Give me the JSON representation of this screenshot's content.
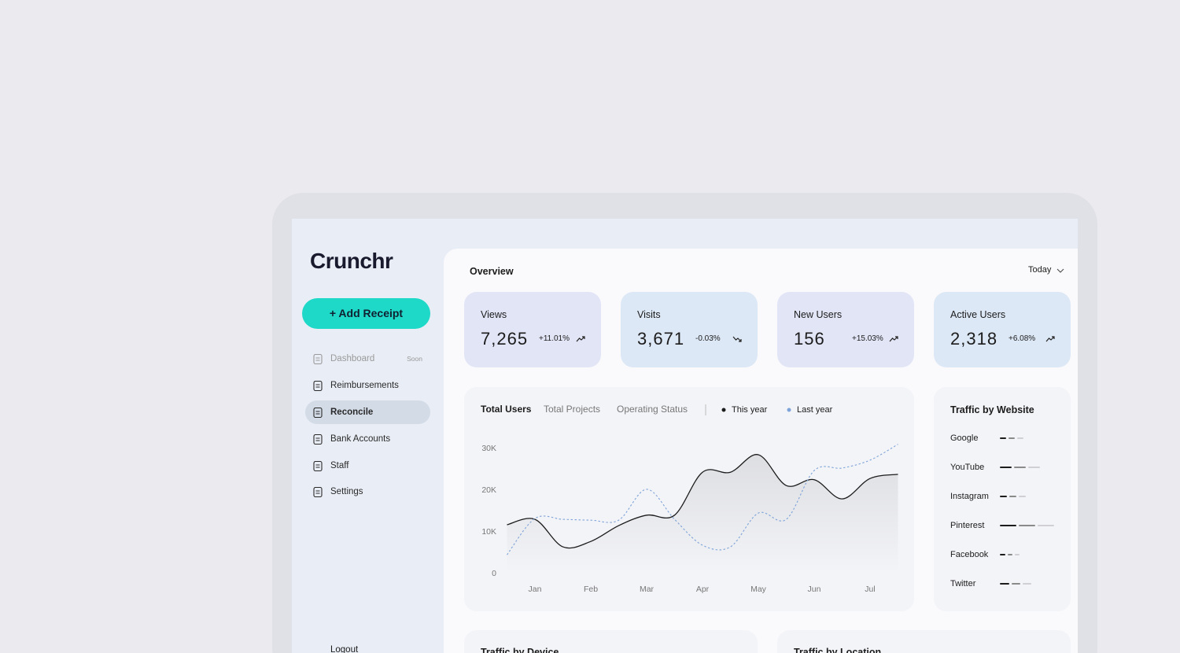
{
  "sidebar": {
    "logo": "Crunchr",
    "button": "+ Add Receipt",
    "nav": [
      {
        "label": "Dashboard",
        "badge": "Soon",
        "disabled": true
      },
      {
        "label": "Reimbursements"
      },
      {
        "label": "Reconcile",
        "active": true
      },
      {
        "label": "Bank Accounts"
      },
      {
        "label": "Staff"
      },
      {
        "label": "Settings"
      }
    ],
    "logout": "Logout"
  },
  "overview": {
    "title": "Overview",
    "period": "Today",
    "stats": [
      {
        "label": "Views",
        "value": "7,265",
        "change": "+11.01%",
        "trend": "up"
      },
      {
        "label": "Visits",
        "value": "3,671",
        "change": "-0.03%",
        "trend": "down"
      },
      {
        "label": "New Users",
        "value": "156",
        "change": "+15.03%",
        "trend": "up"
      },
      {
        "label": "Active Users",
        "value": "2,318",
        "change": "+6.08%",
        "trend": "up"
      }
    ]
  },
  "chart_data": {
    "type": "line",
    "tabs": [
      "Total Users",
      "Total Projects",
      "Operating Status"
    ],
    "categories": [
      null,
      "Jan",
      null,
      "Feb",
      null,
      "Mar",
      null,
      "Apr",
      null,
      "May",
      null,
      "Jun",
      null,
      "Jul",
      null
    ],
    "series": [
      {
        "name": "This year",
        "color": "#1c1c1c",
        "dashed": false,
        "values": [
          11700,
          13000,
          6400,
          7700,
          11500,
          14000,
          14000,
          24300,
          24300,
          28500,
          21100,
          22500,
          17900,
          22800,
          23800
        ]
      },
      {
        "name": "Last year",
        "color": "#7ea3d8",
        "dashed": true,
        "values": [
          4500,
          13200,
          13000,
          12800,
          12800,
          20200,
          13000,
          6800,
          6400,
          14500,
          13000,
          24700,
          25300,
          27200,
          31000
        ]
      }
    ],
    "ylim": [
      0,
      32000
    ],
    "yticks": [
      0,
      {
        "value": 10000,
        "label": "10K"
      },
      {
        "value": 20000,
        "label": "20K"
      },
      {
        "value": 30000,
        "label": "30K"
      }
    ],
    "grid": false
  },
  "traffic_by_website": {
    "title": "Traffic by Website",
    "sites": [
      "Google",
      "YouTube",
      "Instagram",
      "Pinterest",
      "Facebook",
      "Twitter"
    ]
  },
  "panels": [
    "Traffic by Device",
    "Traffic by Location"
  ]
}
